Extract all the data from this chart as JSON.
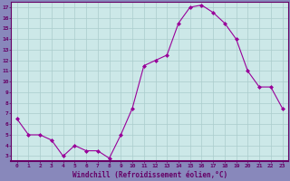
{
  "x": [
    0,
    1,
    2,
    3,
    4,
    5,
    6,
    7,
    8,
    9,
    10,
    11,
    12,
    13,
    14,
    15,
    16,
    17,
    18,
    19,
    20,
    21,
    22,
    23
  ],
  "y": [
    6.5,
    5.0,
    5.0,
    4.5,
    3.0,
    4.0,
    3.5,
    3.5,
    2.8,
    5.0,
    7.5,
    11.5,
    12.0,
    12.5,
    15.5,
    17.0,
    17.2,
    16.5,
    15.5,
    14.0,
    11.0,
    9.5,
    9.5,
    7.5
  ],
  "line_color": "#990099",
  "marker": "D",
  "marker_size": 2,
  "bg_color": "#cce8e8",
  "grid_color": "#aacccc",
  "xlabel": "Windchill (Refroidissement éolien,°C)",
  "xlabel_color": "#660066",
  "tick_color": "#660066",
  "ylabel_ticks": [
    3,
    4,
    5,
    6,
    7,
    8,
    9,
    10,
    11,
    12,
    13,
    14,
    15,
    16,
    17
  ],
  "xlim": [
    -0.5,
    23.5
  ],
  "ylim": [
    2.5,
    17.5
  ],
  "fig_bg_color": "#8888bb",
  "spine_color": "#660066",
  "bottom_bar_color": "#660066"
}
